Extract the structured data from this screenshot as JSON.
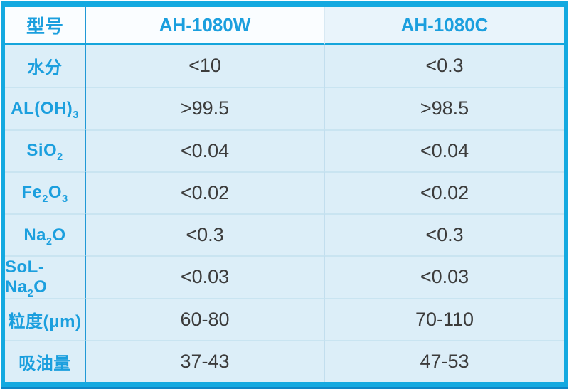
{
  "chart_data": {
    "type": "table",
    "title": "",
    "columns": [
      "型号",
      "AH-1080W",
      "AH-1080C"
    ],
    "rows": [
      {
        "property": "水分",
        "AH-1080W": "<10",
        "AH-1080C": "<0.3"
      },
      {
        "property": "AL(OH)3",
        "AH-1080W": ">99.5",
        "AH-1080C": ">98.5"
      },
      {
        "property": "SiO2",
        "AH-1080W": "<0.04",
        "AH-1080C": "<0.04"
      },
      {
        "property": "Fe2O3",
        "AH-1080W": "<0.02",
        "AH-1080C": "<0.02"
      },
      {
        "property": "Na2O",
        "AH-1080W": "<0.3",
        "AH-1080C": "<0.3"
      },
      {
        "property": "SoL-Na2O",
        "AH-1080W": "<0.03",
        "AH-1080C": "<0.03"
      },
      {
        "property": "粒度(μm)",
        "AH-1080W": "60-80",
        "AH-1080C": "70-110"
      },
      {
        "property": "吸油量",
        "AH-1080W": "37-43",
        "AH-1080C": "47-53"
      }
    ],
    "layout": {
      "grid": true,
      "legend": "none"
    }
  },
  "table": {
    "header": {
      "col1": "型号",
      "col2": "AH-1080W",
      "col3": "AH-1080C"
    },
    "rows": [
      {
        "label_parts": [
          {
            "t": "水分"
          }
        ],
        "values": [
          "<10",
          "<0.3"
        ]
      },
      {
        "label_parts": [
          {
            "t": "AL(OH)"
          },
          {
            "t": "3",
            "sub": true
          }
        ],
        "values": [
          ">99.5",
          ">98.5"
        ]
      },
      {
        "label_parts": [
          {
            "t": "SiO"
          },
          {
            "t": "2",
            "sub": true
          }
        ],
        "values": [
          "<0.04",
          "<0.04"
        ]
      },
      {
        "label_parts": [
          {
            "t": "Fe"
          },
          {
            "t": "2",
            "sub": true
          },
          {
            "t": "O"
          },
          {
            "t": "3",
            "sub": true
          }
        ],
        "values": [
          "<0.02",
          "<0.02"
        ]
      },
      {
        "label_parts": [
          {
            "t": "Na"
          },
          {
            "t": "2",
            "sub": true
          },
          {
            "t": "O"
          }
        ],
        "values": [
          "<0.3",
          "<0.3"
        ]
      },
      {
        "label_parts": [
          {
            "t": "SoL-Na"
          },
          {
            "t": "2",
            "sub": true
          },
          {
            "t": "O"
          }
        ],
        "values": [
          "<0.03",
          "<0.03"
        ]
      },
      {
        "label_parts": [
          {
            "t": "粒度(μm)"
          }
        ],
        "values": [
          "60-80",
          "70-110"
        ]
      },
      {
        "label_parts": [
          {
            "t": "吸油量"
          }
        ],
        "values": [
          "37-43",
          "47-53"
        ]
      }
    ]
  },
  "colors": {
    "outer_border": "#14a9e0",
    "bottom_edge": "#0d85c6",
    "strong_divider": "#2199d6",
    "light_divider": "#c9e4f1",
    "header_bg": "#fafdff",
    "header_bg_right": "#e9f4fb",
    "row_bg": "#dceef8",
    "label_text": "#1b9fde",
    "value_text": "#3c3c3c"
  }
}
